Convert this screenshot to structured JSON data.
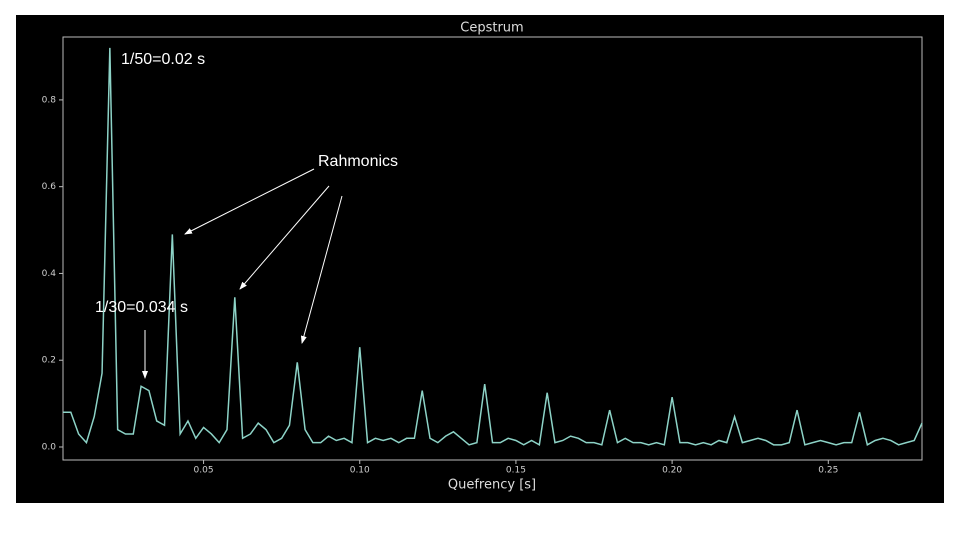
{
  "chart_data": {
    "type": "line",
    "title": "Cepstrum",
    "x_label": "Quefrency [s]",
    "x": [
      0.005,
      0.0075,
      0.01,
      0.0125,
      0.015,
      0.0175,
      0.02,
      0.0225,
      0.025,
      0.0275,
      0.03,
      0.0325,
      0.035,
      0.0375,
      0.04,
      0.0425,
      0.045,
      0.0475,
      0.05,
      0.0525,
      0.055,
      0.0575,
      0.06,
      0.0625,
      0.065,
      0.0675,
      0.07,
      0.0725,
      0.075,
      0.0775,
      0.08,
      0.0825,
      0.085,
      0.0875,
      0.09,
      0.0925,
      0.095,
      0.0975,
      0.1,
      0.1025,
      0.105,
      0.1075,
      0.11,
      0.1125,
      0.115,
      0.1175,
      0.12,
      0.1225,
      0.125,
      0.1275,
      0.13,
      0.1325,
      0.135,
      0.1375,
      0.14,
      0.1425,
      0.145,
      0.1475,
      0.15,
      0.1525,
      0.155,
      0.1575,
      0.16,
      0.1625,
      0.165,
      0.1675,
      0.17,
      0.1725,
      0.175,
      0.1775,
      0.18,
      0.1825,
      0.185,
      0.1875,
      0.19,
      0.1925,
      0.195,
      0.1975,
      0.2,
      0.2025,
      0.205,
      0.2075,
      0.21,
      0.2125,
      0.215,
      0.2175,
      0.22,
      0.2225,
      0.225,
      0.2275,
      0.23,
      0.2325,
      0.235,
      0.2375,
      0.24,
      0.2425,
      0.245,
      0.2475,
      0.25,
      0.2525,
      0.255,
      0.2575,
      0.26,
      0.2625,
      0.265,
      0.2675,
      0.27,
      0.2725,
      0.275,
      0.2775,
      0.28
    ],
    "series": [
      {
        "color": "#8dd3c7",
        "values": [
          0.08,
          0.08,
          0.03,
          0.01,
          0.07,
          0.17,
          0.92,
          0.04,
          0.03,
          0.03,
          0.14,
          0.13,
          0.06,
          0.05,
          0.49,
          0.03,
          0.06,
          0.02,
          0.045,
          0.03,
          0.01,
          0.04,
          0.345,
          0.02,
          0.03,
          0.055,
          0.04,
          0.01,
          0.02,
          0.05,
          0.195,
          0.04,
          0.01,
          0.01,
          0.025,
          0.015,
          0.02,
          0.01,
          0.23,
          0.01,
          0.02,
          0.015,
          0.02,
          0.01,
          0.02,
          0.02,
          0.13,
          0.02,
          0.01,
          0.025,
          0.035,
          0.02,
          0.005,
          0.01,
          0.145,
          0.01,
          0.01,
          0.02,
          0.015,
          0.005,
          0.015,
          0.005,
          0.125,
          0.01,
          0.015,
          0.025,
          0.02,
          0.01,
          0.01,
          0.005,
          0.085,
          0.01,
          0.02,
          0.01,
          0.01,
          0.005,
          0.01,
          0.005,
          0.115,
          0.01,
          0.01,
          0.005,
          0.01,
          0.005,
          0.015,
          0.01,
          0.07,
          0.01,
          0.015,
          0.02,
          0.015,
          0.005,
          0.005,
          0.01,
          0.085,
          0.005,
          0.01,
          0.015,
          0.01,
          0.005,
          0.01,
          0.01,
          0.08,
          0.005,
          0.015,
          0.02,
          0.015,
          0.005,
          0.01,
          0.015,
          0.055
        ]
      }
    ],
    "xlim": [
      0.005,
      0.28
    ],
    "ylim": [
      -0.03,
      0.945
    ],
    "xticks": [
      0.05,
      {
        "value": 0.1,
        "label": "0.10"
      },
      0.15,
      {
        "value": 0.2,
        "label": "0.20"
      },
      0.25
    ],
    "yticks": [
      {
        "value": 0,
        "label": "0.0"
      },
      0.2,
      0.4,
      0.6,
      0.8
    ],
    "annotations": [
      "1/50=0.02 s",
      "Rahmonics",
      "1/30=0.034 s"
    ]
  }
}
